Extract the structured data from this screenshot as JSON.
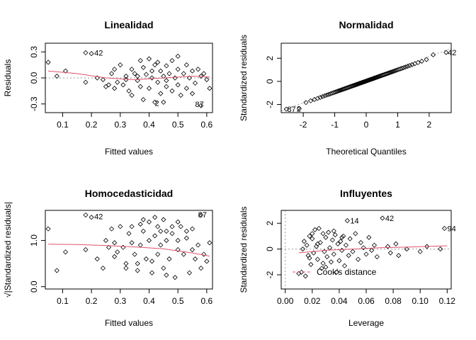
{
  "chart_data": [
    {
      "type": "scatter",
      "title": "Linealidad",
      "xlabel": "Fitted values",
      "ylabel": "Residuals",
      "xlim": [
        0.04,
        0.62
      ],
      "ylim": [
        -0.4,
        0.4
      ],
      "xticks": [
        0.1,
        0.2,
        0.3,
        0.4,
        0.5,
        0.6
      ],
      "xtick_labels": [
        "0.1",
        "0.2",
        "0.3",
        "0.4",
        "0.5",
        "0.6"
      ],
      "yticks": [
        -0.3,
        0.0,
        0.3
      ],
      "ytick_labels": [
        "-0.3",
        "0.0",
        "0.3"
      ],
      "refline_y": 0,
      "grid": false,
      "points": [
        [
          0.05,
          0.18
        ],
        [
          0.08,
          0.02
        ],
        [
          0.11,
          0.08
        ],
        [
          0.18,
          0.29
        ],
        [
          0.2,
          0.28
        ],
        [
          0.18,
          -0.05
        ],
        [
          0.22,
          0.0
        ],
        [
          0.24,
          -0.02
        ],
        [
          0.25,
          -0.1
        ],
        [
          0.27,
          0.05
        ],
        [
          0.28,
          -0.12
        ],
        [
          0.29,
          -0.05
        ],
        [
          0.3,
          0.15
        ],
        [
          0.31,
          -0.08
        ],
        [
          0.32,
          0.02
        ],
        [
          0.33,
          -0.15
        ],
        [
          0.34,
          0.1
        ],
        [
          0.34,
          -0.2
        ],
        [
          0.35,
          0.05
        ],
        [
          0.36,
          -0.03
        ],
        [
          0.37,
          0.2
        ],
        [
          0.37,
          -0.1
        ],
        [
          0.38,
          0.12
        ],
        [
          0.38,
          -0.25
        ],
        [
          0.39,
          0.04
        ],
        [
          0.4,
          -0.12
        ],
        [
          0.4,
          0.22
        ],
        [
          0.41,
          0.0
        ],
        [
          0.42,
          -0.28
        ],
        [
          0.42,
          0.15
        ],
        [
          0.43,
          0.18
        ],
        [
          0.43,
          -0.05
        ],
        [
          0.44,
          0.08
        ],
        [
          0.44,
          -0.18
        ],
        [
          0.45,
          0.02
        ],
        [
          0.46,
          -0.1
        ],
        [
          0.46,
          0.14
        ],
        [
          0.47,
          0.05
        ],
        [
          0.48,
          -0.15
        ],
        [
          0.48,
          0.2
        ],
        [
          0.49,
          0.0
        ],
        [
          0.5,
          -0.08
        ],
        [
          0.5,
          0.1
        ],
        [
          0.51,
          -0.2
        ],
        [
          0.52,
          0.05
        ],
        [
          0.53,
          -0.12
        ],
        [
          0.53,
          0.15
        ],
        [
          0.54,
          0.0
        ],
        [
          0.55,
          -0.18
        ],
        [
          0.55,
          0.08
        ],
        [
          0.56,
          -0.06
        ],
        [
          0.57,
          0.1
        ],
        [
          0.58,
          -0.32
        ],
        [
          0.58,
          0.02
        ],
        [
          0.59,
          0.05
        ],
        [
          0.6,
          -0.02
        ],
        [
          0.61,
          -0.12
        ],
        [
          0.28,
          0.1
        ],
        [
          0.32,
          -0.02
        ],
        [
          0.26,
          -0.08
        ],
        [
          0.36,
          0.02
        ],
        [
          0.45,
          -0.28
        ],
        [
          0.5,
          0.25
        ],
        [
          0.41,
          0.08
        ],
        [
          0.46,
          -0.03
        ]
      ],
      "smooth": [
        [
          0.05,
          0.08
        ],
        [
          0.15,
          0.05
        ],
        [
          0.25,
          0.0
        ],
        [
          0.35,
          -0.02
        ],
        [
          0.45,
          0.0
        ],
        [
          0.55,
          0.02
        ],
        [
          0.61,
          0.01
        ]
      ],
      "annotations": [
        {
          "x": 0.2,
          "y": 0.29,
          "text": "42"
        },
        {
          "x": 0.41,
          "y": -0.29,
          "text": "2"
        },
        {
          "x": 0.55,
          "y": -0.3,
          "text": "87"
        }
      ]
    },
    {
      "type": "scatter",
      "title": "Normalidad",
      "xlabel": "Theoretical Quantiles",
      "ylabel": "Standardized residuals",
      "xlim": [
        -2.7,
        2.7
      ],
      "ylim": [
        -2.7,
        3.3
      ],
      "xticks": [
        -2,
        -1,
        0,
        1,
        2
      ],
      "xtick_labels": [
        "-2",
        "-1",
        "0",
        "1",
        "2"
      ],
      "yticks": [
        -2,
        0,
        2
      ],
      "ytick_labels": [
        "-2",
        "0",
        "2"
      ],
      "grid": false,
      "qq_points": 90,
      "annotations": [
        {
          "x": 2.5,
          "y": 2.5,
          "text": "42"
        },
        {
          "x": -2.6,
          "y": -2.4,
          "text": "87"
        },
        {
          "x": -2.3,
          "y": -2.35,
          "text": "2"
        }
      ]
    },
    {
      "type": "scatter",
      "title": "Homocedasticidad",
      "xlabel": "Fitted values",
      "ylabel": "√|Standardized residuals|",
      "xlim": [
        0.04,
        0.62
      ],
      "ylim": [
        -0.05,
        1.65
      ],
      "xticks": [
        0.1,
        0.2,
        0.3,
        0.4,
        0.5,
        0.6
      ],
      "xtick_labels": [
        "0.1",
        "0.2",
        "0.3",
        "0.4",
        "0.5",
        "0.6"
      ],
      "yticks": [
        0.0,
        1.0
      ],
      "ytick_labels": [
        "0.0",
        "1.0"
      ],
      "grid": false,
      "points": [
        [
          0.05,
          1.25
        ],
        [
          0.08,
          0.35
        ],
        [
          0.11,
          0.75
        ],
        [
          0.18,
          1.55
        ],
        [
          0.2,
          1.5
        ],
        [
          0.18,
          0.8
        ],
        [
          0.22,
          0.6
        ],
        [
          0.24,
          0.4
        ],
        [
          0.25,
          1.0
        ],
        [
          0.27,
          1.25
        ],
        [
          0.28,
          0.95
        ],
        [
          0.29,
          0.75
        ],
        [
          0.3,
          1.3
        ],
        [
          0.31,
          0.85
        ],
        [
          0.32,
          0.5
        ],
        [
          0.33,
          1.15
        ],
        [
          0.34,
          0.95
        ],
        [
          0.34,
          1.3
        ],
        [
          0.35,
          0.7
        ],
        [
          0.36,
          0.5
        ],
        [
          0.37,
          1.35
        ],
        [
          0.37,
          0.9
        ],
        [
          0.38,
          1.2
        ],
        [
          0.38,
          1.45
        ],
        [
          0.39,
          0.6
        ],
        [
          0.4,
          1.0
        ],
        [
          0.4,
          1.4
        ],
        [
          0.41,
          0.3
        ],
        [
          0.42,
          1.5
        ],
        [
          0.42,
          1.1
        ],
        [
          0.43,
          1.3
        ],
        [
          0.43,
          0.7
        ],
        [
          0.44,
          0.9
        ],
        [
          0.44,
          1.2
        ],
        [
          0.45,
          0.4
        ],
        [
          0.46,
          1.0
        ],
        [
          0.46,
          1.2
        ],
        [
          0.47,
          0.6
        ],
        [
          0.48,
          1.15
        ],
        [
          0.48,
          1.3
        ],
        [
          0.49,
          0.2
        ],
        [
          0.5,
          0.8
        ],
        [
          0.5,
          1.0
        ],
        [
          0.51,
          1.3
        ],
        [
          0.52,
          0.7
        ],
        [
          0.53,
          1.05
        ],
        [
          0.53,
          1.2
        ],
        [
          0.54,
          0.3
        ],
        [
          0.55,
          1.25
        ],
        [
          0.55,
          0.8
        ],
        [
          0.56,
          0.6
        ],
        [
          0.57,
          0.9
        ],
        [
          0.58,
          1.55
        ],
        [
          0.58,
          0.4
        ],
        [
          0.59,
          0.7
        ],
        [
          0.6,
          0.55
        ],
        [
          0.61,
          0.95
        ],
        [
          0.28,
          0.65
        ],
        [
          0.32,
          0.4
        ],
        [
          0.26,
          0.85
        ],
        [
          0.36,
          0.35
        ],
        [
          0.45,
          1.45
        ],
        [
          0.5,
          1.4
        ],
        [
          0.41,
          0.55
        ],
        [
          0.46,
          0.25
        ]
      ],
      "smooth": [
        [
          0.05,
          0.92
        ],
        [
          0.15,
          0.91
        ],
        [
          0.25,
          0.89
        ],
        [
          0.35,
          0.86
        ],
        [
          0.45,
          0.82
        ],
        [
          0.55,
          0.73
        ],
        [
          0.61,
          0.66
        ]
      ],
      "annotations": [
        {
          "x": 0.2,
          "y": 1.52,
          "text": "42"
        },
        {
          "x": 0.56,
          "y": 1.56,
          "text": "87"
        }
      ]
    },
    {
      "type": "scatter",
      "title": "Influyentes",
      "xlabel": "Leverage",
      "ylabel": "Standardized residuals",
      "xlim": [
        -0.003,
        0.123
      ],
      "ylim": [
        -3.1,
        3.0
      ],
      "xticks": [
        0.0,
        0.02,
        0.04,
        0.06,
        0.08,
        0.1,
        0.12
      ],
      "xtick_labels": [
        "0.00",
        "0.02",
        "0.04",
        "0.06",
        "0.08",
        "0.10",
        "0.12"
      ],
      "yticks": [
        -2,
        0,
        2
      ],
      "ytick_labels": [
        "-2",
        "0",
        "2"
      ],
      "refline_y": 0,
      "refline_x": 0,
      "grid": false,
      "points": [
        [
          0.012,
          -1.8
        ],
        [
          0.014,
          0.6
        ],
        [
          0.015,
          -2.1
        ],
        [
          0.016,
          0.3
        ],
        [
          0.017,
          -0.5
        ],
        [
          0.018,
          1.0
        ],
        [
          0.019,
          -1.2
        ],
        [
          0.02,
          0.8
        ],
        [
          0.021,
          -0.3
        ],
        [
          0.022,
          1.5
        ],
        [
          0.023,
          0.2
        ],
        [
          0.024,
          -0.8
        ],
        [
          0.025,
          1.6
        ],
        [
          0.026,
          0.5
        ],
        [
          0.027,
          -1.5
        ],
        [
          0.028,
          1.2
        ],
        [
          0.029,
          -0.2
        ],
        [
          0.03,
          0.9
        ],
        [
          0.031,
          -0.6
        ],
        [
          0.032,
          1.3
        ],
        [
          0.033,
          0.1
        ],
        [
          0.034,
          -1.0
        ],
        [
          0.035,
          0.7
        ],
        [
          0.036,
          -0.4
        ],
        [
          0.037,
          1.1
        ],
        [
          0.038,
          -1.8
        ],
        [
          0.039,
          0.4
        ],
        [
          0.04,
          -0.9
        ],
        [
          0.041,
          0.6
        ],
        [
          0.042,
          -0.1
        ],
        [
          0.043,
          1.0
        ],
        [
          0.044,
          -1.3
        ],
        [
          0.045,
          0.3
        ],
        [
          0.046,
          2.2
        ],
        [
          0.047,
          -0.5
        ],
        [
          0.048,
          0.8
        ],
        [
          0.05,
          -0.2
        ],
        [
          0.052,
          1.2
        ],
        [
          0.054,
          -0.8
        ],
        [
          0.056,
          0.5
        ],
        [
          0.058,
          0.1
        ],
        [
          0.06,
          -0.4
        ],
        [
          0.062,
          0.9
        ],
        [
          0.064,
          -0.1
        ],
        [
          0.066,
          0.3
        ],
        [
          0.068,
          -0.6
        ],
        [
          0.072,
          2.4
        ],
        [
          0.076,
          0.2
        ],
        [
          0.078,
          -0.3
        ],
        [
          0.082,
          0.4
        ],
        [
          0.084,
          -0.5
        ],
        [
          0.09,
          0.0
        ],
        [
          0.1,
          -0.2
        ],
        [
          0.105,
          0.2
        ],
        [
          0.115,
          0.0
        ],
        [
          0.118,
          1.6
        ],
        [
          0.013,
          0.0
        ],
        [
          0.018,
          -0.7
        ],
        [
          0.024,
          0.4
        ],
        [
          0.03,
          -1.4
        ],
        [
          0.036,
          1.4
        ],
        [
          0.042,
          0.9
        ],
        [
          0.01,
          -1.9
        ],
        [
          0.02,
          1.2
        ],
        [
          0.028,
          -1.1
        ]
      ],
      "smooth": [
        [
          0.01,
          -0.3
        ],
        [
          0.03,
          -0.1
        ],
        [
          0.05,
          0.0
        ],
        [
          0.07,
          0.1
        ],
        [
          0.09,
          0.15
        ],
        [
          0.12,
          0.25
        ]
      ],
      "annotations": [
        {
          "x": 0.046,
          "y": 2.2,
          "text": "14"
        },
        {
          "x": 0.072,
          "y": 2.4,
          "text": "42"
        },
        {
          "x": 0.118,
          "y": 1.6,
          "text": "94"
        }
      ],
      "legend": {
        "placement": "bottom-left",
        "label": "Cook's distance"
      }
    }
  ]
}
